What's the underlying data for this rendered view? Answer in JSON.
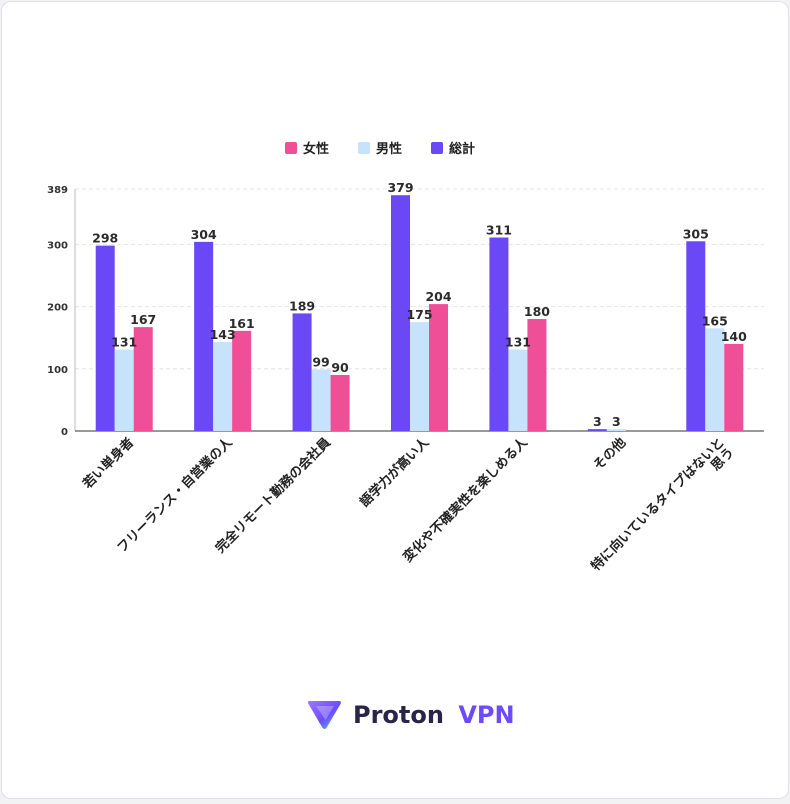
{
  "chart_data": {
    "type": "bar",
    "title": "",
    "xlabel": "",
    "ylabel": "",
    "ylim": [
      0,
      389
    ],
    "yticks": [
      0,
      100,
      200,
      300,
      389
    ],
    "grid": true,
    "legend_position": "top-center",
    "categories": [
      "若い単身者",
      "フリーランス・自営業の人",
      "完全リモート勤務の会社員",
      "語学力が高い人",
      "変化や不確実性を楽しめる人",
      "その他",
      "特に向いているタイプはないと思う"
    ],
    "category_lines": [
      [
        "若い単身者"
      ],
      [
        "フリーランス・自営業の人"
      ],
      [
        "完全リモート勤務の会社員"
      ],
      [
        "語学力が高い人"
      ],
      [
        "変化や不確実性を楽しめる人"
      ],
      [
        "その他"
      ],
      [
        "特に向いているタイプはないと",
        "思う"
      ]
    ],
    "series": [
      {
        "name": "総計",
        "color": "#6b48f5",
        "values": [
          298,
          304,
          189,
          379,
          311,
          3,
          305
        ]
      },
      {
        "name": "男性",
        "color": "#c7e2fb",
        "values": [
          131,
          143,
          99,
          175,
          131,
          3,
          165
        ]
      },
      {
        "name": "女性",
        "color": "#ef4f96",
        "values": [
          167,
          161,
          90,
          204,
          180,
          0,
          140
        ]
      }
    ],
    "legend_order": [
      "女性",
      "男性",
      "総計"
    ]
  },
  "brand": {
    "name_part1": "Proton",
    "name_part2": "VPN",
    "color_dark": "#2a2548",
    "color_accent": "#6d4aff"
  }
}
